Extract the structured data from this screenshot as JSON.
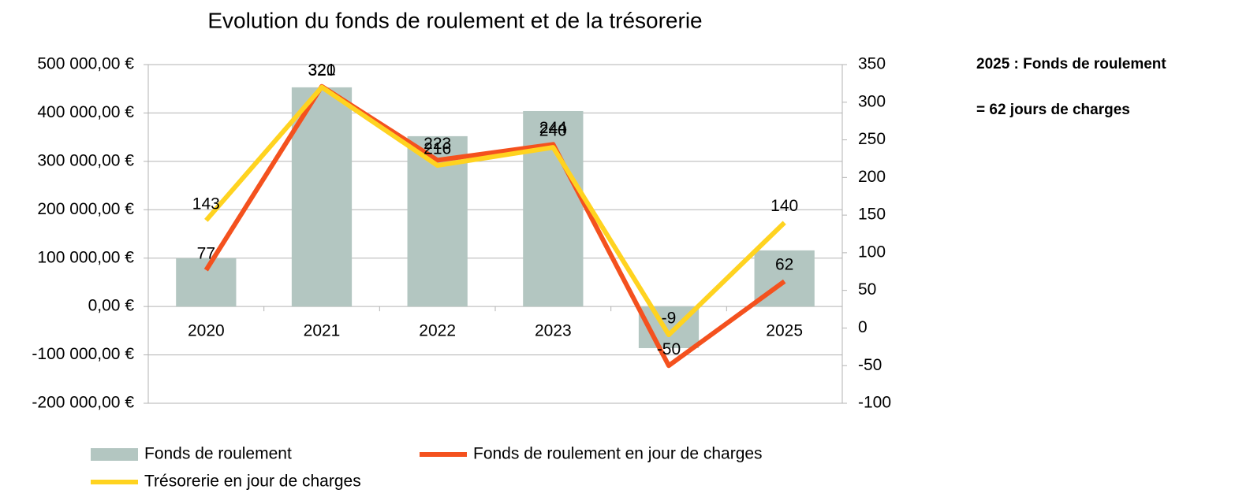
{
  "chart_data": {
    "type": "combo",
    "title": "Evolution du fonds de roulement et de la trésorerie",
    "categories": [
      "2020",
      "2021",
      "2022",
      "2023",
      "2024",
      "2025"
    ],
    "series": [
      {
        "name": "Fonds de roulement",
        "type": "bar",
        "color": "#b3c6c1",
        "values": [
          100000,
          453000,
          352000,
          404000,
          -86000,
          116000
        ]
      },
      {
        "name": "Fonds de roulement en jour de charges",
        "type": "line",
        "axis": "y2",
        "color": "#f4511e",
        "values": [
          77,
          321,
          223,
          244,
          -50,
          62
        ]
      },
      {
        "name": "Trésorerie en jour de charges",
        "type": "line",
        "axis": "y2",
        "color": "#ffd320",
        "values": [
          143,
          320,
          216,
          240,
          -9,
          140
        ]
      }
    ],
    "ylim": [
      -200000,
      500000
    ],
    "yticks": [
      {
        "value": -200000,
        "label": "-200 000,00 €"
      },
      {
        "value": -100000,
        "label": "-100 000,00 €"
      },
      {
        "value": 0,
        "label": "0,00 €"
      },
      {
        "value": 100000,
        "label": "100 000,00 €"
      },
      {
        "value": 200000,
        "label": "200 000,00 €"
      },
      {
        "value": 300000,
        "label": "300 000,00 €"
      },
      {
        "value": 400000,
        "label": "400 000,00 €"
      },
      {
        "value": 500000,
        "label": "500 000,00 €"
      }
    ],
    "y2lim": [
      -100,
      350
    ],
    "y2ticks": [
      -100,
      -50,
      0,
      50,
      100,
      150,
      200,
      250,
      300,
      350
    ],
    "negative_tick_color": "#e00000",
    "grid": true,
    "legend": "bottom",
    "annotations": [
      "2025 : Fonds de roulement",
      "= 62 jours de charges"
    ]
  }
}
